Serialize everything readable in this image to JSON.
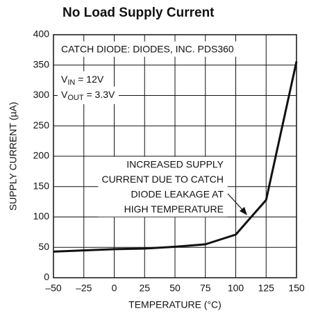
{
  "chart_data": {
    "type": "line",
    "title": "No Load Supply Current",
    "xlabel": "TEMPERATURE (°C)",
    "ylabel": "SUPPLY CURRENT (µA)",
    "x": [
      -50,
      -25,
      0,
      25,
      50,
      75,
      100,
      125,
      150
    ],
    "values": [
      43,
      45,
      47,
      48,
      51,
      55,
      71,
      128,
      356
    ],
    "color": "#111111",
    "xlim": [
      -50,
      150
    ],
    "ylim": [
      0,
      400
    ],
    "xticks": [
      {
        "value": -50,
        "label": "–50"
      },
      {
        "value": -25,
        "label": "–25"
      },
      0,
      25,
      50,
      75,
      100,
      125,
      150
    ],
    "yticks": [
      0,
      50,
      100,
      150,
      200,
      250,
      300,
      350,
      400
    ],
    "grid": true,
    "annotations": [
      {
        "text": "CATCH DIODE: DIODES, INC. PDS360"
      },
      {
        "parts": [
          "V",
          "IN",
          " = 12V"
        ]
      },
      {
        "parts": [
          "V",
          "OUT",
          " = 3.3V"
        ]
      },
      {
        "lines": [
          "INCREASED SUPPLY",
          "CURRENT DUE TO CATCH",
          "DIODE LEAKAGE AT",
          "HIGH TEMPERATURE"
        ]
      }
    ]
  }
}
